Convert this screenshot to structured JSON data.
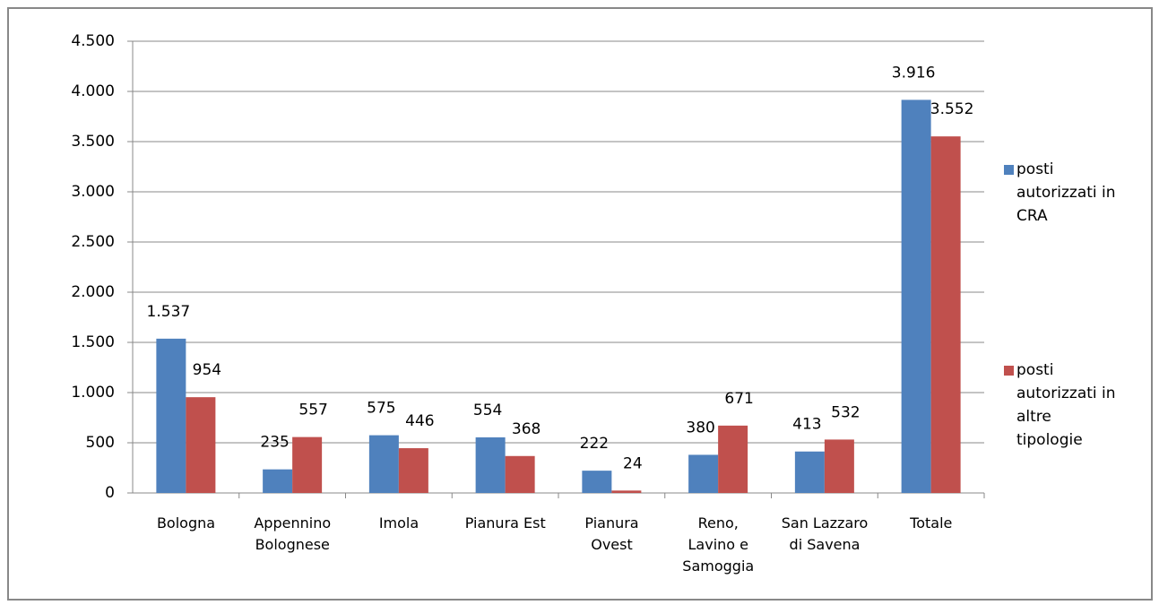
{
  "chart_data": {
    "type": "bar",
    "categories": [
      "Bologna",
      "Appennino\nBolognese",
      "Imola",
      "Pianura Est",
      "Pianura\nOvest",
      "Reno,\nLavino e\nSamoggia",
      "San Lazzaro\ndi Savena",
      "Totale"
    ],
    "series": [
      {
        "name": "posti\nautorizzati in\nCRA",
        "color": "#4f81bd",
        "values": [
          1537,
          235,
          575,
          554,
          222,
          380,
          413,
          3916
        ],
        "value_labels": [
          "1.537",
          "235",
          "575",
          "554",
          "222",
          "380",
          "413",
          "3.916"
        ]
      },
      {
        "name": "posti\nautorizzati in\naltre\ntipologie",
        "color": "#c0504d",
        "values": [
          954,
          557,
          446,
          368,
          24,
          671,
          532,
          3552
        ],
        "value_labels": [
          "954",
          "557",
          "446",
          "368",
          "24",
          "671",
          "532",
          "3.552"
        ]
      }
    ],
    "ylim": [
      0,
      4500
    ],
    "yticks": [
      0,
      500,
      {
        "value": 1000,
        "label": "1.000"
      },
      {
        "value": 1500,
        "label": "1.500"
      },
      {
        "value": 2000,
        "label": "2.000"
      },
      {
        "value": 2500,
        "label": "2.500"
      },
      {
        "value": 3000,
        "label": "3.000"
      },
      {
        "value": 3500,
        "label": "3.500"
      },
      {
        "value": 4000,
        "label": "4.000"
      },
      {
        "value": 4500,
        "label": "4.500"
      }
    ],
    "grid": true
  }
}
